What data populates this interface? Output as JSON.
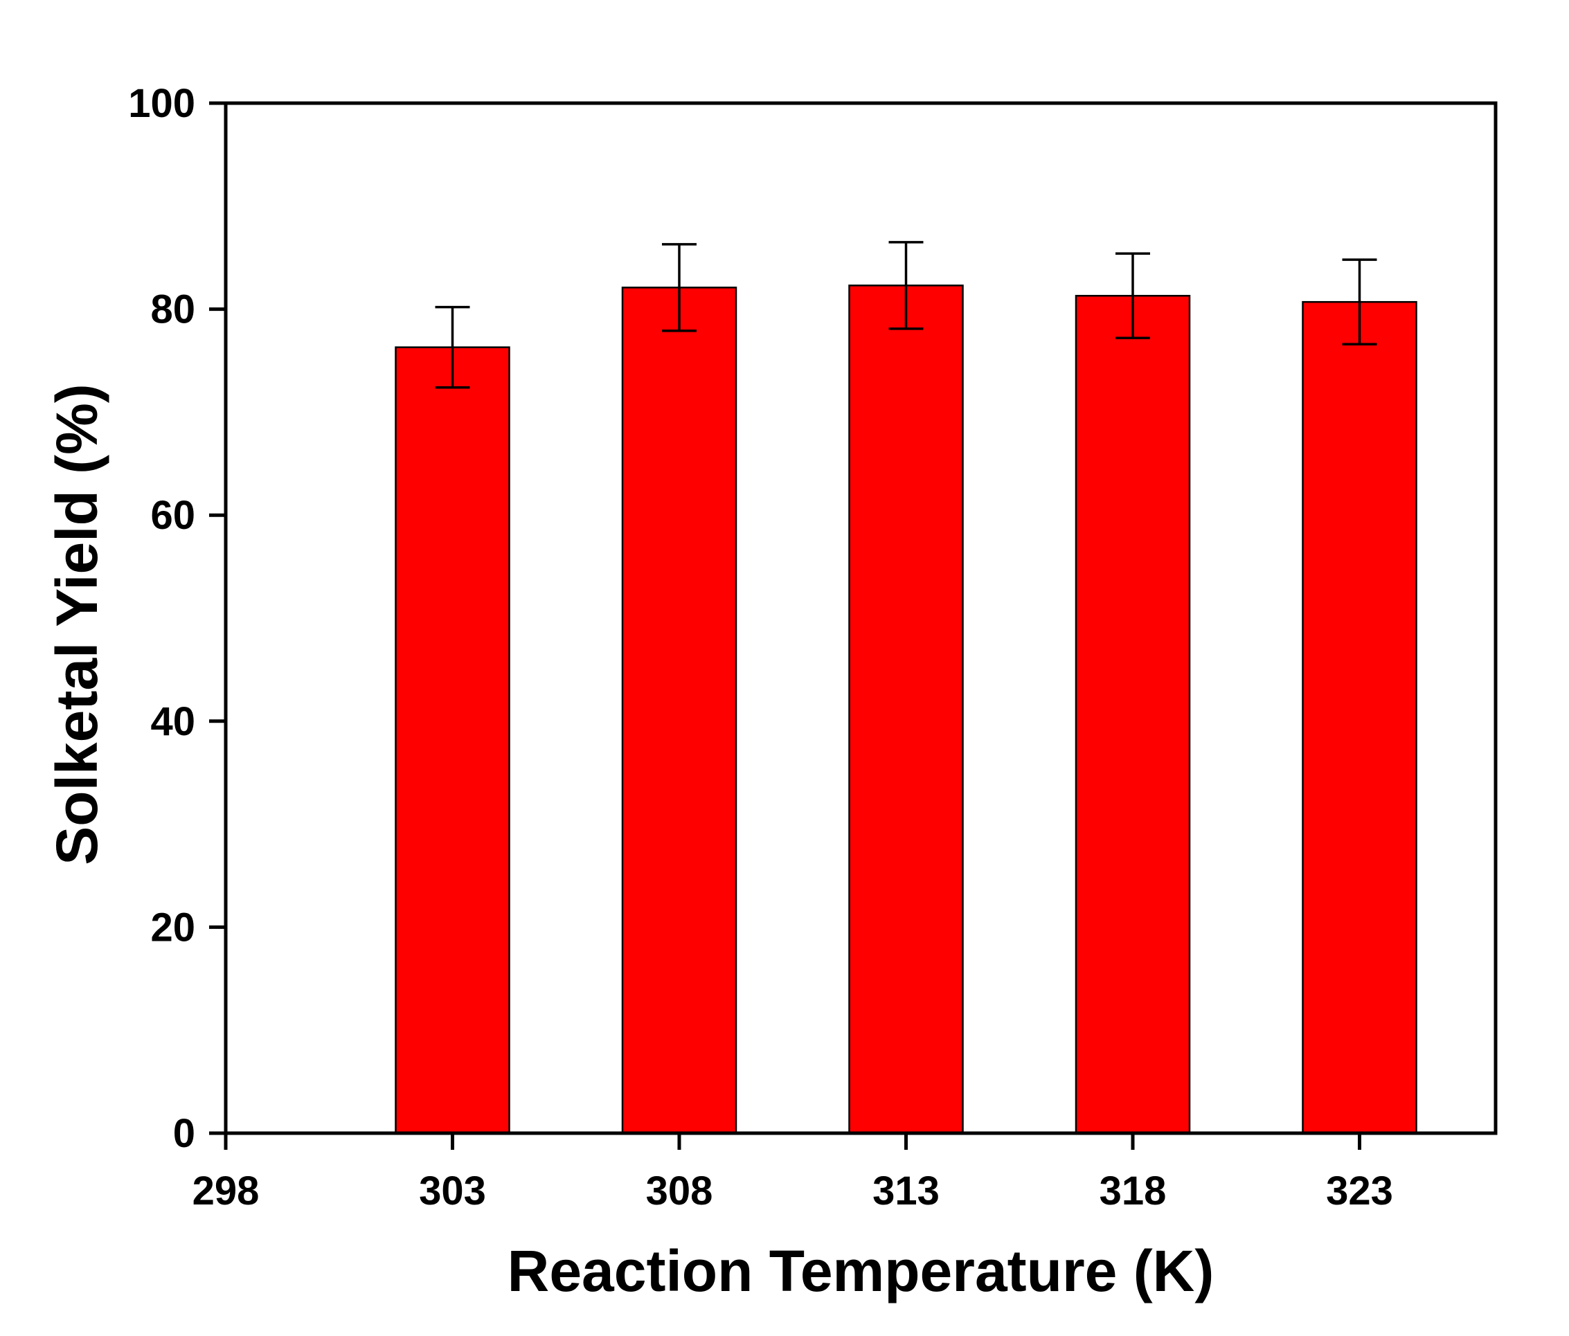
{
  "chart_data": {
    "type": "bar",
    "title": "",
    "xlabel": "Reaction Temperature (K)",
    "ylabel": "Solketal Yield (%)",
    "x_ticks": [
      "298",
      "303",
      "308",
      "313",
      "318",
      "323"
    ],
    "x_tick_values": [
      298,
      303,
      308,
      313,
      318,
      323
    ],
    "xlim": [
      298,
      326
    ],
    "ylim": [
      0,
      100
    ],
    "y_ticks": [
      "0",
      "20",
      "40",
      "60",
      "80",
      "100"
    ],
    "y_tick_values": [
      0,
      20,
      40,
      60,
      80,
      100
    ],
    "categories": [
      "303",
      "308",
      "313",
      "318",
      "323"
    ],
    "x": [
      303,
      308,
      313,
      318,
      323
    ],
    "values": [
      76.3,
      82.1,
      82.3,
      81.3,
      80.7
    ],
    "error": [
      3.9,
      4.2,
      4.2,
      4.1,
      4.1
    ],
    "bar_color": "#ff0000",
    "edge_color": "#000000",
    "grid": false,
    "legend": "none"
  }
}
